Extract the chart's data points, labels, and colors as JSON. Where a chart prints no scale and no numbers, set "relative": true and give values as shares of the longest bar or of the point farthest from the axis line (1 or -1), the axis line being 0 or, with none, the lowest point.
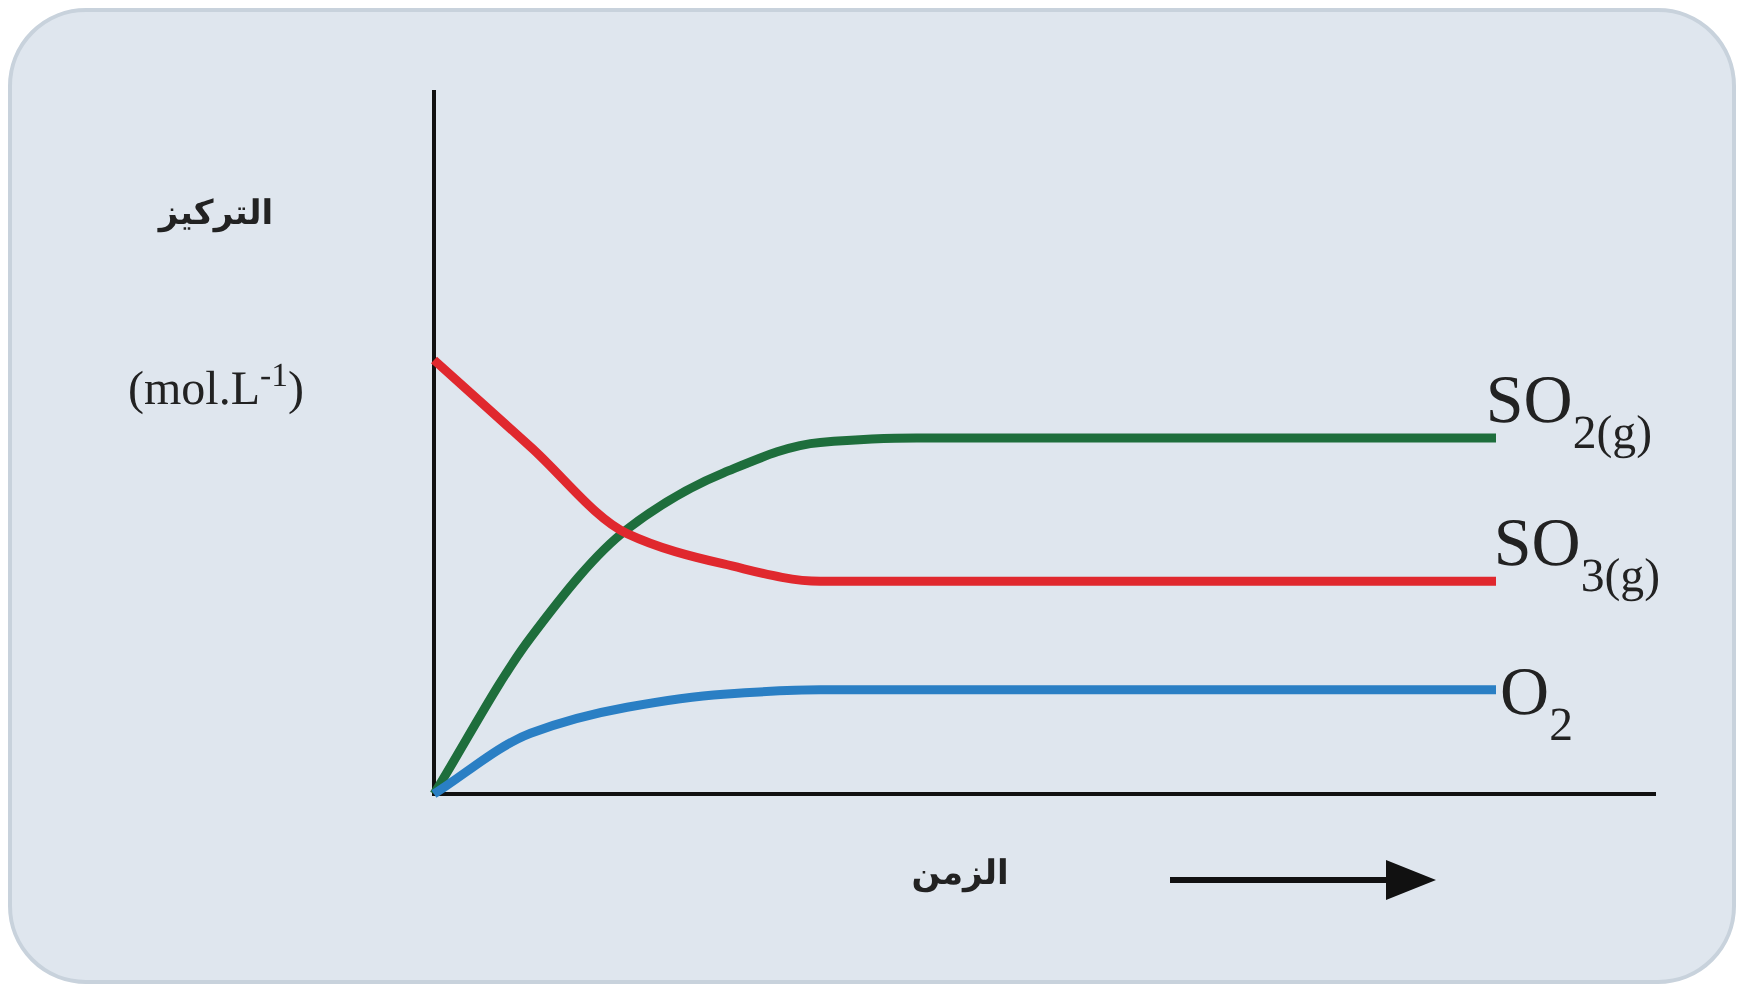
{
  "chart_data": {
    "type": "line",
    "relative": true,
    "xlabel": "الزمن",
    "ylabel": "التركيز (mol.L$^{-1}$)",
    "categories": [
      null,
      null,
      null,
      null,
      null,
      null,
      null,
      null,
      null,
      null,
      null,
      null
    ],
    "series": [
      {
        "name": "SO$_{2(g)}$",
        "color": "#1e6e3c",
        "values": [
          0,
          0.36,
          0.61,
          0.74,
          0.81,
          0.82,
          0.82,
          0.82,
          0.82,
          0.82,
          0.82,
          0.82
        ]
      },
      {
        "name": "SO$_{3(g)}$",
        "color": "#e0282e",
        "values": [
          1,
          0.8,
          0.6,
          0.53,
          0.49,
          0.49,
          0.49,
          0.49,
          0.49,
          0.49,
          0.49,
          0.49
        ]
      },
      {
        "name": "O$_{2}$",
        "color": "#2a7fc4",
        "values": [
          0,
          0.14,
          0.2,
          0.23,
          0.24,
          0.24,
          0.24,
          0.24,
          0.24,
          0.24,
          0.24,
          0.24
        ]
      }
    ]
  }
}
